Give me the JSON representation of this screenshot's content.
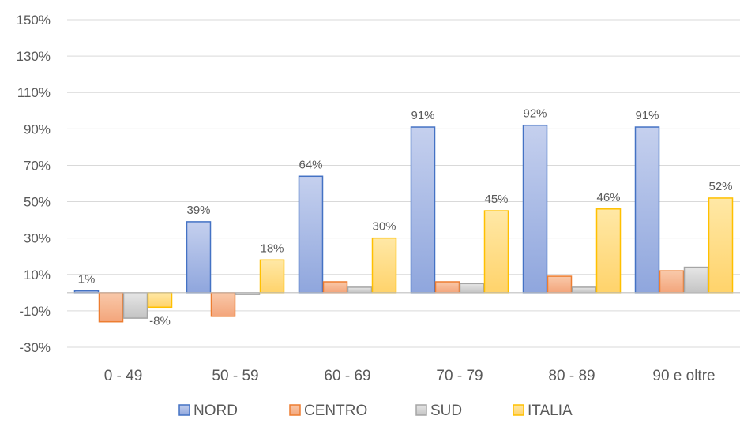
{
  "chart_data": {
    "type": "bar",
    "categories": [
      "0 - 49",
      "50 - 59",
      "60 - 69",
      "70 - 79",
      "80 - 89",
      "90 e oltre"
    ],
    "series": [
      {
        "name": "NORD",
        "values": [
          1,
          39,
          64,
          91,
          92,
          91
        ],
        "color": "#4472c4",
        "fill_top": "#c5d0ee",
        "fill_bottom": "#8fa6dd"
      },
      {
        "name": "CENTRO",
        "values": [
          -16,
          -13,
          6,
          6,
          9,
          12
        ],
        "color": "#ed7d31",
        "fill_top": "#f9c9aa",
        "fill_bottom": "#f3a57b"
      },
      {
        "name": "SUD",
        "values": [
          -14,
          -1,
          3,
          5,
          3,
          14
        ],
        "color": "#a5a5a5",
        "fill_top": "#e6e6e6",
        "fill_bottom": "#c4c4c4"
      },
      {
        "name": "ITALIA",
        "values": [
          -8,
          18,
          30,
          45,
          46,
          52
        ],
        "color": "#ffc000",
        "fill_top": "#ffe8a6",
        "fill_bottom": "#ffd36b"
      }
    ],
    "data_labels": [
      {
        "series": "NORD",
        "category": "0 - 49",
        "text": "1%"
      },
      {
        "series": "ITALIA",
        "category": "0 - 49",
        "text": "-8%"
      },
      {
        "series": "NORD",
        "category": "50 - 59",
        "text": "39%"
      },
      {
        "series": "ITALIA",
        "category": "50 - 59",
        "text": "18%"
      },
      {
        "series": "NORD",
        "category": "60 - 69",
        "text": "64%"
      },
      {
        "series": "ITALIA",
        "category": "60 - 69",
        "text": "30%"
      },
      {
        "series": "NORD",
        "category": "70 - 79",
        "text": "91%"
      },
      {
        "series": "ITALIA",
        "category": "70 - 79",
        "text": "45%"
      },
      {
        "series": "NORD",
        "category": "80 - 89",
        "text": "92%"
      },
      {
        "series": "ITALIA",
        "category": "80 - 89",
        "text": "46%"
      },
      {
        "series": "NORD",
        "category": "90 e oltre",
        "text": "91%"
      },
      {
        "series": "ITALIA",
        "category": "90 e oltre",
        "text": "52%"
      }
    ],
    "ylim": [
      -30,
      150
    ],
    "yticks": [
      -30,
      -10,
      10,
      30,
      50,
      70,
      90,
      110,
      130,
      150
    ],
    "ytick_labels": [
      "-30%",
      "-10%",
      "10%",
      "30%",
      "50%",
      "70%",
      "90%",
      "110%",
      "130%",
      "150%"
    ],
    "grid": true,
    "legend_position": "bottom",
    "gridline_color": "#d9d9d9",
    "axis_line_color": "#bfbfbf",
    "text_color": "#595959"
  }
}
